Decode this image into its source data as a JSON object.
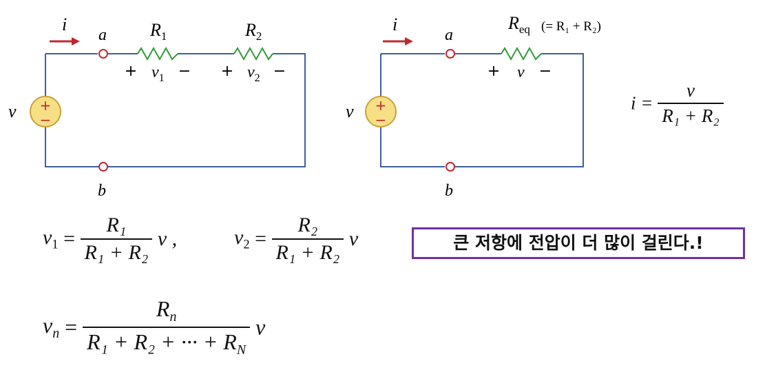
{
  "circuit_left": {
    "current_label": "i",
    "node_a": "a",
    "node_b": "b",
    "source_label": "v",
    "r1_label": "R",
    "r1_sub": "1",
    "r2_label": "R",
    "r2_sub": "2",
    "v1_label": "v",
    "v1_sub": "1",
    "v2_label": "v",
    "v2_sub": "2",
    "plus": "+",
    "minus": "−"
  },
  "circuit_right": {
    "current_label": "i",
    "node_a": "a",
    "node_b": "b",
    "source_label": "v",
    "req_label": "R",
    "req_sub": "eq",
    "req_paren": "(= R₁ + R₂)",
    "v_label": "v",
    "plus": "+",
    "minus": "−"
  },
  "equations": {
    "i_lhs": "i =",
    "i_num": "v",
    "i_den": "R₁ + R₂",
    "v1_lhs_var": "v",
    "v1_lhs_sub": "1",
    "v1_num": "R₁",
    "v1_den": "R₁ + R₂",
    "v1_tail": "v ,",
    "v2_lhs_var": "v",
    "v2_lhs_sub": "2",
    "v2_num": "R₂",
    "v2_den": "R₁ + R₂",
    "v2_tail": "v",
    "vn_lhs_var": "v",
    "vn_lhs_sub": "n",
    "vn_num_var": "R",
    "vn_num_sub": "n",
    "vn_den": "R₁ + R₂ + ··· + R",
    "vn_den_sub": "N",
    "vn_tail": "v"
  },
  "note": {
    "text": "큰 저항에 전압이 더 많이 걸린다.!",
    "border_color": "#7030a0"
  },
  "colors": {
    "wire": "#3c5fa0",
    "resistor": "#2e9a3a",
    "arrow": "#c0272d",
    "terminal": "#c0272d",
    "source_fill": "#f7df86",
    "source_stroke": "#c8a43c",
    "source_sign": "#c0272d"
  }
}
